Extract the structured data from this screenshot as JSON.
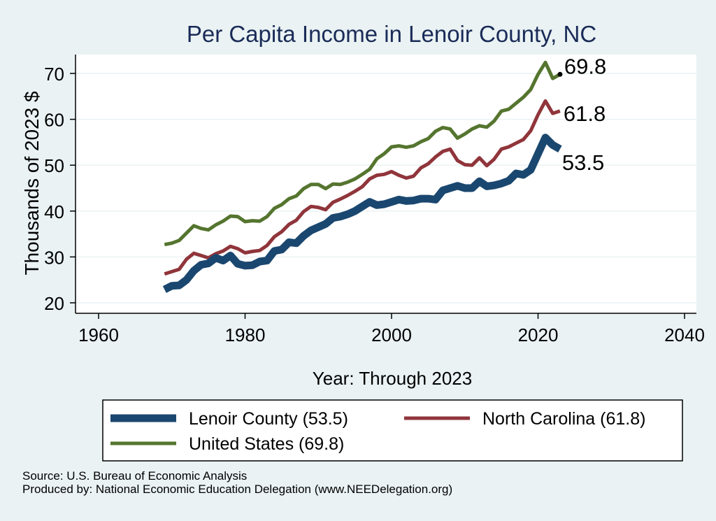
{
  "chart_data": {
    "type": "line",
    "title": "Per Capita Income in Lenoir County, NC",
    "xlabel": "Year: Through 2023",
    "ylabel": "Thousands of 2023 $",
    "xlim": [
      1960,
      2040
    ],
    "ylim": [
      20,
      75
    ],
    "x_ticks": [
      1960,
      1980,
      2000,
      2020,
      2040
    ],
    "y_ticks": [
      20,
      30,
      40,
      50,
      60,
      70
    ],
    "grid": "horizontal",
    "legend_position": "bottom",
    "x": [
      1969,
      1970,
      1971,
      1972,
      1973,
      1974,
      1975,
      1976,
      1977,
      1978,
      1979,
      1980,
      1981,
      1982,
      1983,
      1984,
      1985,
      1986,
      1987,
      1988,
      1989,
      1990,
      1991,
      1992,
      1993,
      1994,
      1995,
      1996,
      1997,
      1998,
      1999,
      2000,
      2001,
      2002,
      2003,
      2004,
      2005,
      2006,
      2007,
      2008,
      2009,
      2010,
      2011,
      2012,
      2013,
      2014,
      2015,
      2016,
      2017,
      2018,
      2019,
      2020,
      2021,
      2022,
      2023
    ],
    "series": [
      {
        "name": "Lenoir County (53.5)",
        "color": "#1a476f",
        "end_label": "53.5",
        "values": [
          22.9,
          23.7,
          23.8,
          25.0,
          27.0,
          28.3,
          28.6,
          29.8,
          29.2,
          30.3,
          28.5,
          28.1,
          28.2,
          29.0,
          29.2,
          31.3,
          31.6,
          33.2,
          33.0,
          34.6,
          35.8,
          36.5,
          37.2,
          38.5,
          38.8,
          39.3,
          40.0,
          41.0,
          42.0,
          41.3,
          41.5,
          42.0,
          42.5,
          42.2,
          42.3,
          42.7,
          42.7,
          42.5,
          44.5,
          45.0,
          45.5,
          45.0,
          45.0,
          46.5,
          45.4,
          45.6,
          46.0,
          46.6,
          48.2,
          47.9,
          49.0,
          52.5,
          56.0,
          54.4,
          53.5
        ]
      },
      {
        "name": "North Carolina (61.8)",
        "color": "#90353b",
        "end_label": "61.8",
        "values": [
          26.3,
          26.8,
          27.3,
          29.5,
          30.8,
          30.3,
          29.8,
          30.7,
          31.3,
          32.3,
          31.8,
          30.9,
          31.2,
          31.4,
          32.5,
          34.4,
          35.5,
          37.1,
          38.0,
          39.9,
          41.0,
          40.8,
          40.3,
          41.9,
          42.6,
          43.4,
          44.3,
          45.3,
          47.0,
          47.8,
          48.0,
          48.6,
          47.8,
          47.2,
          47.6,
          49.4,
          50.3,
          51.8,
          53.0,
          53.5,
          51.0,
          50.1,
          50.0,
          51.6,
          49.9,
          51.3,
          53.5,
          54.0,
          54.8,
          55.6,
          57.5,
          61.0,
          64.0,
          61.3,
          61.8
        ]
      },
      {
        "name": "United States (69.8)",
        "color": "#55752f",
        "end_label": "69.8",
        "values": [
          32.7,
          33.0,
          33.6,
          35.2,
          36.8,
          36.2,
          35.9,
          37.0,
          37.8,
          38.9,
          38.8,
          37.7,
          37.9,
          37.8,
          38.8,
          40.6,
          41.4,
          42.7,
          43.3,
          44.9,
          45.8,
          45.8,
          44.9,
          45.9,
          45.8,
          46.3,
          47.0,
          48.0,
          49.1,
          51.4,
          52.5,
          54.0,
          54.2,
          53.9,
          54.2,
          55.1,
          55.8,
          57.4,
          58.2,
          57.9,
          55.9,
          56.8,
          57.9,
          58.6,
          58.3,
          59.6,
          61.8,
          62.2,
          63.5,
          64.8,
          66.5,
          69.8,
          72.4,
          68.9,
          69.8
        ]
      }
    ]
  },
  "footer": {
    "source": "Source: U.S. Bureau of Economic Analysis",
    "produced_by": "Produced by: National Economic Education Delegation (www.NEEDelegation.org)"
  }
}
